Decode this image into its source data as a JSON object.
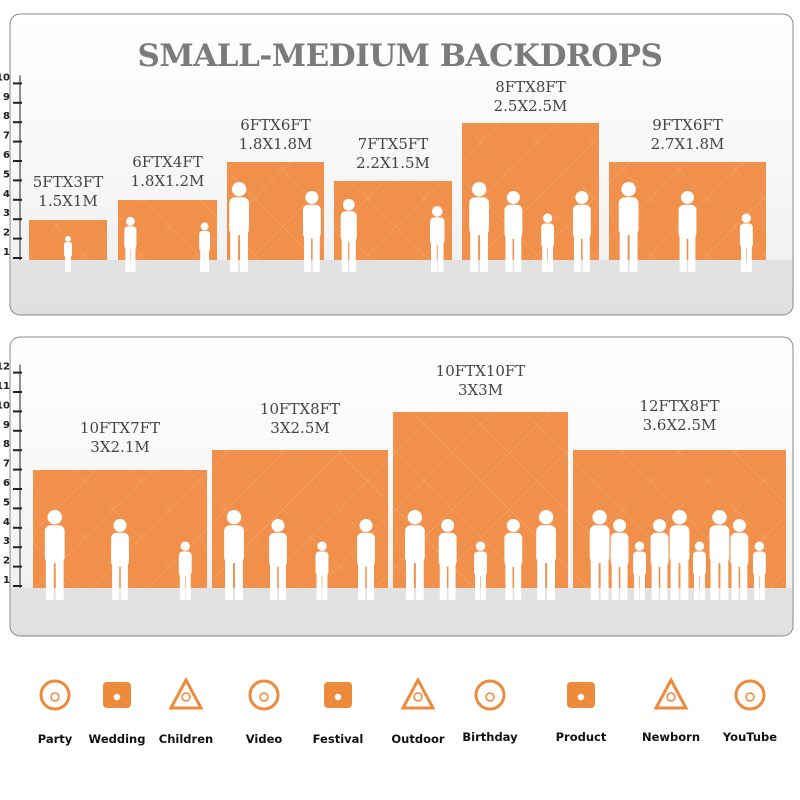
{
  "header": {
    "title": "SMALL-MEDIUM BACKDROPS"
  },
  "panels": [
    {
      "ruler": [
        "1",
        "2",
        "3",
        "4",
        "5",
        "6",
        "7",
        "8",
        "9",
        "10"
      ],
      "backdrops": [
        {
          "size_ft": "5FTX3FT",
          "size_m": "1.5X1M"
        },
        {
          "size_ft": "6FTX4FT",
          "size_m": "1.8X1.2M"
        },
        {
          "size_ft": "6FTX6FT",
          "size_m": "1.8X1.8M"
        },
        {
          "size_ft": "7FTX5FT",
          "size_m": "2.2X1.5M"
        },
        {
          "size_ft": "8FTX8FT",
          "size_m": "2.5X2.5M"
        },
        {
          "size_ft": "9FTX6FT",
          "size_m": "2.7X1.8M"
        }
      ]
    },
    {
      "ruler": [
        "1",
        "2",
        "3",
        "4",
        "5",
        "6",
        "7",
        "8",
        "9",
        "10",
        "11",
        "12"
      ],
      "backdrops": [
        {
          "size_ft": "10FTX7FT",
          "size_m": "3X2.1M"
        },
        {
          "size_ft": "10FTX8FT",
          "size_m": "3X2.5M"
        },
        {
          "size_ft": "10FTX10FT",
          "size_m": "3X3M"
        },
        {
          "size_ft": "12FTX8FT",
          "size_m": "3.6X2.5M"
        }
      ]
    }
  ],
  "icons": [
    {
      "label": "Party"
    },
    {
      "label": "Wedding"
    },
    {
      "label": "Children"
    },
    {
      "label": "Video"
    },
    {
      "label": "Festival"
    },
    {
      "label": "Outdoor"
    },
    {
      "label": "Birthday"
    },
    {
      "label": "Product"
    },
    {
      "label": "Newborn"
    },
    {
      "label": "YouTube"
    }
  ]
}
